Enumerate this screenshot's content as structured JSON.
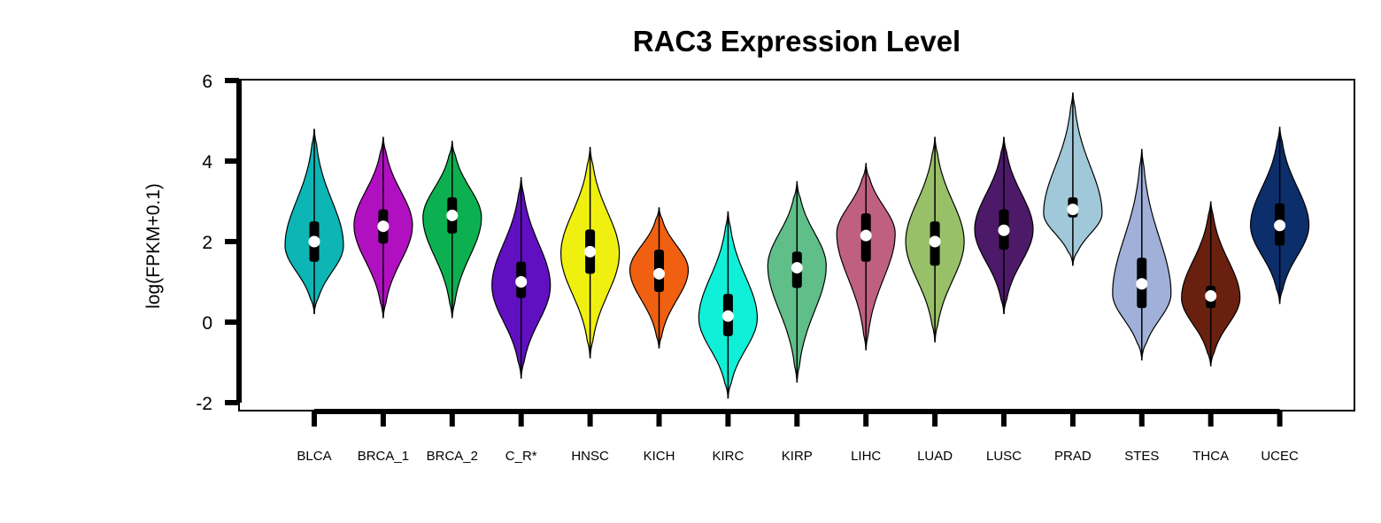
{
  "chart_data": {
    "type": "violin",
    "title": "RAC3 Expression Level",
    "xlabel": "",
    "ylabel": "log(FPKM+0.1)",
    "ylim": [
      -2,
      6
    ],
    "yticks": [
      -2,
      0,
      2,
      4,
      6
    ],
    "legend": "none",
    "grid": false,
    "categories": [
      "BLCA",
      "BRCA_1",
      "BRCA_2",
      "C_R*",
      "HNSC",
      "KICH",
      "KIRC",
      "KIRP",
      "LIHC",
      "LUAD",
      "LUSC",
      "PRAD",
      "STES",
      "THCA",
      "UCEC"
    ],
    "series": [
      {
        "category": "BLCA",
        "color": "#0DB5B5",
        "min": 0.2,
        "max": 4.8,
        "q1": 1.5,
        "median": 2.0,
        "q3": 2.5,
        "whisker_low": 0.2,
        "whisker_high": 4.8,
        "peak": 1.9
      },
      {
        "category": "BRCA_1",
        "color": "#B010C0",
        "min": 0.1,
        "max": 4.6,
        "q1": 1.95,
        "median": 2.38,
        "q3": 2.8,
        "whisker_low": 0.1,
        "whisker_high": 4.6,
        "peak": 2.4
      },
      {
        "category": "BRCA_2",
        "color": "#0DB050",
        "min": 0.1,
        "max": 4.5,
        "q1": 2.2,
        "median": 2.65,
        "q3": 3.1,
        "whisker_low": 0.1,
        "whisker_high": 4.5,
        "peak": 2.6
      },
      {
        "category": "C_R*",
        "color": "#6010C0",
        "min": -1.4,
        "max": 3.6,
        "q1": 0.6,
        "median": 1.0,
        "q3": 1.5,
        "whisker_low": -1.4,
        "whisker_high": 3.6,
        "peak": 0.9
      },
      {
        "category": "HNSC",
        "color": "#F0F010",
        "min": -0.9,
        "max": 4.35,
        "q1": 1.2,
        "median": 1.75,
        "q3": 2.3,
        "whisker_low": -0.9,
        "whisker_high": 4.35,
        "peak": 1.7
      },
      {
        "category": "KICH",
        "color": "#F06010",
        "min": -0.65,
        "max": 2.85,
        "q1": 0.75,
        "median": 1.2,
        "q3": 1.8,
        "whisker_low": -0.65,
        "whisker_high": 2.85,
        "peak": 1.3
      },
      {
        "category": "KIRC",
        "color": "#10F0D8",
        "min": -1.9,
        "max": 2.75,
        "q1": -0.35,
        "median": 0.15,
        "q3": 0.7,
        "whisker_low": -1.9,
        "whisker_high": 2.75,
        "peak": 0.1
      },
      {
        "category": "KIRP",
        "color": "#60BF88",
        "min": -1.5,
        "max": 3.5,
        "q1": 0.85,
        "median": 1.35,
        "q3": 1.75,
        "whisker_low": -1.5,
        "whisker_high": 3.5,
        "peak": 1.4
      },
      {
        "category": "LIHC",
        "color": "#C06080",
        "min": -0.7,
        "max": 3.95,
        "q1": 1.5,
        "median": 2.15,
        "q3": 2.7,
        "whisker_low": -0.7,
        "whisker_high": 3.95,
        "peak": 2.2
      },
      {
        "category": "LUAD",
        "color": "#98C068",
        "min": -0.5,
        "max": 4.6,
        "q1": 1.4,
        "median": 2.0,
        "q3": 2.5,
        "whisker_low": -0.5,
        "whisker_high": 4.6,
        "peak": 2.0
      },
      {
        "category": "LUSC",
        "color": "#4C1A68",
        "min": 0.2,
        "max": 4.6,
        "q1": 1.8,
        "median": 2.28,
        "q3": 2.8,
        "whisker_low": 0.2,
        "whisker_high": 4.6,
        "peak": 2.3
      },
      {
        "category": "PRAD",
        "color": "#A0C8D8",
        "min": 1.4,
        "max": 5.7,
        "q1": 2.6,
        "median": 2.8,
        "q3": 3.1,
        "whisker_low": 1.4,
        "whisker_high": 5.7,
        "peak": 2.7
      },
      {
        "category": "STES",
        "color": "#A0B0D8",
        "min": -0.95,
        "max": 4.3,
        "q1": 0.35,
        "median": 0.95,
        "q3": 1.6,
        "whisker_low": -0.95,
        "whisker_high": 4.3,
        "peak": 0.7
      },
      {
        "category": "THCA",
        "color": "#6A200E",
        "min": -1.1,
        "max": 3.0,
        "q1": 0.35,
        "median": 0.65,
        "q3": 0.9,
        "whisker_low": -1.1,
        "whisker_high": 3.0,
        "peak": 0.6
      },
      {
        "category": "UCEC",
        "color": "#0C2E6A",
        "min": 0.45,
        "max": 4.85,
        "q1": 1.9,
        "median": 2.4,
        "q3": 2.95,
        "whisker_low": 0.45,
        "whisker_high": 4.85,
        "peak": 2.4
      }
    ]
  }
}
